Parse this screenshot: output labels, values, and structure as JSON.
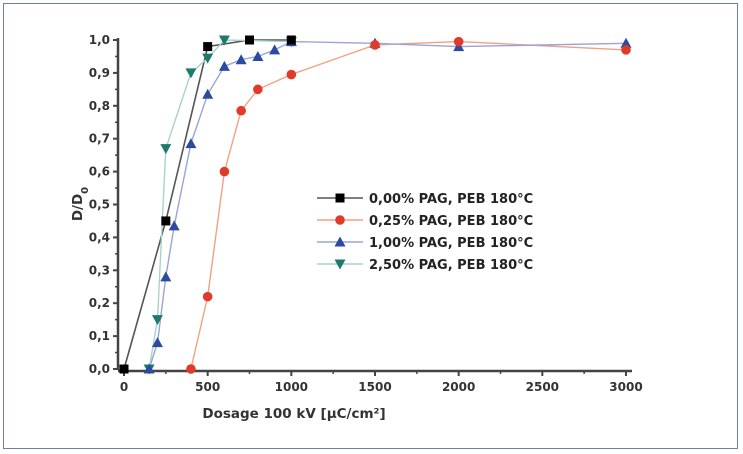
{
  "chart_data": {
    "type": "line",
    "title": "",
    "xlabel": "Dosage 100 kV [µC/cm²]",
    "ylabel_main": "D/D",
    "ylabel_sub": "0",
    "xlim": [
      0,
      3000
    ],
    "ylim": [
      0.0,
      1.0
    ],
    "grid": false,
    "legend_position": "center-right",
    "x_ticks": [
      0,
      500,
      1000,
      1500,
      2000,
      2500,
      3000
    ],
    "x_tick_labels": [
      "0",
      "500",
      "1000",
      "1500",
      "2000",
      "2500",
      "3000"
    ],
    "y_ticks": [
      0.0,
      0.1,
      0.2,
      0.3,
      0.4,
      0.5,
      0.6,
      0.7,
      0.8,
      0.9,
      1.0
    ],
    "y_tick_labels": [
      "0,0",
      "0,1",
      "0,2",
      "0,3",
      "0,4",
      "0,5",
      "0,6",
      "0,7",
      "0,8",
      "0,9",
      "1,0"
    ],
    "series": [
      {
        "name": "0,00% PAG, PEB 180°C",
        "marker": "square",
        "line_color": "#555555",
        "marker_color": "#000000",
        "x": [
          0,
          250,
          500,
          750,
          1000
        ],
        "y": [
          0.0,
          0.45,
          0.98,
          1.0,
          1.0
        ]
      },
      {
        "name": "0,25% PAG, PEB 180°C",
        "marker": "circle",
        "line_color": "#f4a080",
        "marker_color": "#e03a2a",
        "x": [
          400,
          500,
          600,
          700,
          800,
          1000,
          1500,
          2000,
          3000
        ],
        "y": [
          0.0,
          0.22,
          0.6,
          0.785,
          0.85,
          0.895,
          0.985,
          0.995,
          0.97
        ]
      },
      {
        "name": "1,00% PAG, PEB 180°C",
        "marker": "triangle-up",
        "line_color": "#9aa4d8",
        "marker_color": "#2b4aa0",
        "x": [
          150,
          200,
          250,
          300,
          400,
          500,
          600,
          700,
          800,
          900,
          1000,
          1500,
          2000,
          3000
        ],
        "y": [
          0.0,
          0.08,
          0.28,
          0.435,
          0.685,
          0.835,
          0.92,
          0.94,
          0.95,
          0.97,
          0.995,
          0.99,
          0.98,
          0.99
        ]
      },
      {
        "name": "2,50% PAG, PEB 180°C",
        "marker": "triangle-down",
        "line_color": "#a8d4c8",
        "marker_color": "#1f7a6e",
        "x": [
          150,
          200,
          250,
          400,
          500,
          600,
          1000
        ],
        "y": [
          0.0,
          0.15,
          0.67,
          0.9,
          0.945,
          1.0,
          0.995
        ]
      }
    ]
  }
}
